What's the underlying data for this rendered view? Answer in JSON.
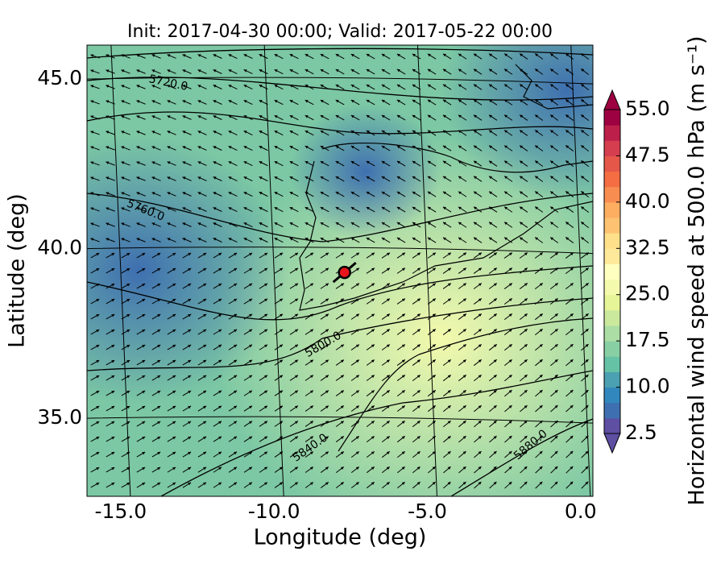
{
  "chart_data": {
    "type": "map",
    "title": "Init: 2017-04-30 00:00; Valid: 2017-05-22 00:00",
    "xlabel": "Longitude (deg)",
    "ylabel": "Latitude (deg)",
    "xlim": [
      -16.1,
      0.4
    ],
    "ylim": [
      32.7,
      46.0
    ],
    "xticks": [
      {
        "value": -15,
        "label": "-15.0"
      },
      {
        "value": -10,
        "label": "-10.0"
      },
      {
        "value": -5,
        "label": "-5.0"
      },
      {
        "value": 0,
        "label": "0.0"
      }
    ],
    "yticks": [
      {
        "value": 35,
        "label": "35.0"
      },
      {
        "value": 40,
        "label": "40.0"
      },
      {
        "value": 45,
        "label": "45.0"
      }
    ],
    "grid": true,
    "contour_labels": [
      "5720.0",
      "5760.0",
      "5800.0",
      "5840.0",
      "5880.0"
    ],
    "marker": {
      "x": -7.7,
      "y": 39.3,
      "color": "#e8141c"
    },
    "colorbar": {
      "label": "Horizontal wind speed at 500.0 hPa (m s⁻¹)",
      "lim": [
        2.5,
        55
      ],
      "ticks": [
        2.5,
        {
          "value": 10,
          "label": "10.0"
        },
        17.5,
        {
          "value": 25,
          "label": "25.0"
        },
        32.5,
        {
          "value": 40,
          "label": "40.0"
        },
        47.5,
        {
          "value": 55,
          "label": "55.0"
        }
      ],
      "colors": [
        "#5e4fa2",
        "#3e6fb0",
        "#3288bd",
        "#4ba0b1",
        "#66c2a5",
        "#88cfa4",
        "#abdda4",
        "#cbe99d",
        "#e6f598",
        "#f4faad",
        "#ffffbf",
        "#fee99a",
        "#fee08b",
        "#fdc373",
        "#fdae61",
        "#f88d51",
        "#f46d43",
        "#e55749",
        "#d53e4f",
        "#bd1f4b",
        "#9e0142"
      ]
    }
  }
}
